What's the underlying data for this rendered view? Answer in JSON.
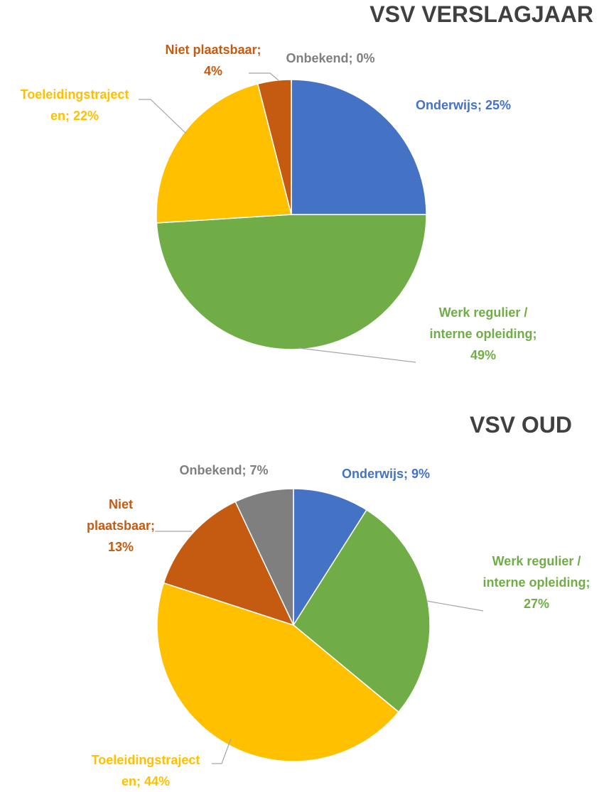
{
  "chart_data": [
    {
      "type": "pie",
      "title": "VSV VERSLAGJAAR",
      "values": [
        25,
        49,
        22,
        4,
        0
      ],
      "value_labels": [
        "Onderwijs; 25%",
        "Werk regulier / interne opleiding; 49%",
        "Toeleidingstrajecten; 22%",
        "Niet plaatsbaar; 4%",
        "Onbekend; 0%"
      ],
      "colors": [
        "#4472c4",
        "#70ad47",
        "#ffc000",
        "#c55a11",
        "#7f7f7f"
      ]
    },
    {
      "type": "pie",
      "title": "VSV OUD",
      "values": [
        9,
        27,
        44,
        13,
        7
      ],
      "value_labels": [
        "Onderwijs; 9%",
        "Werk regulier / interne opleiding; 27%",
        "Toeleidingstrajecten; 44%",
        "Niet plaatsbaar; 13%",
        "Onbekend; 7%"
      ],
      "colors": [
        "#4472c4",
        "#70ad47",
        "#ffc000",
        "#c55a11",
        "#7f7f7f"
      ]
    }
  ]
}
